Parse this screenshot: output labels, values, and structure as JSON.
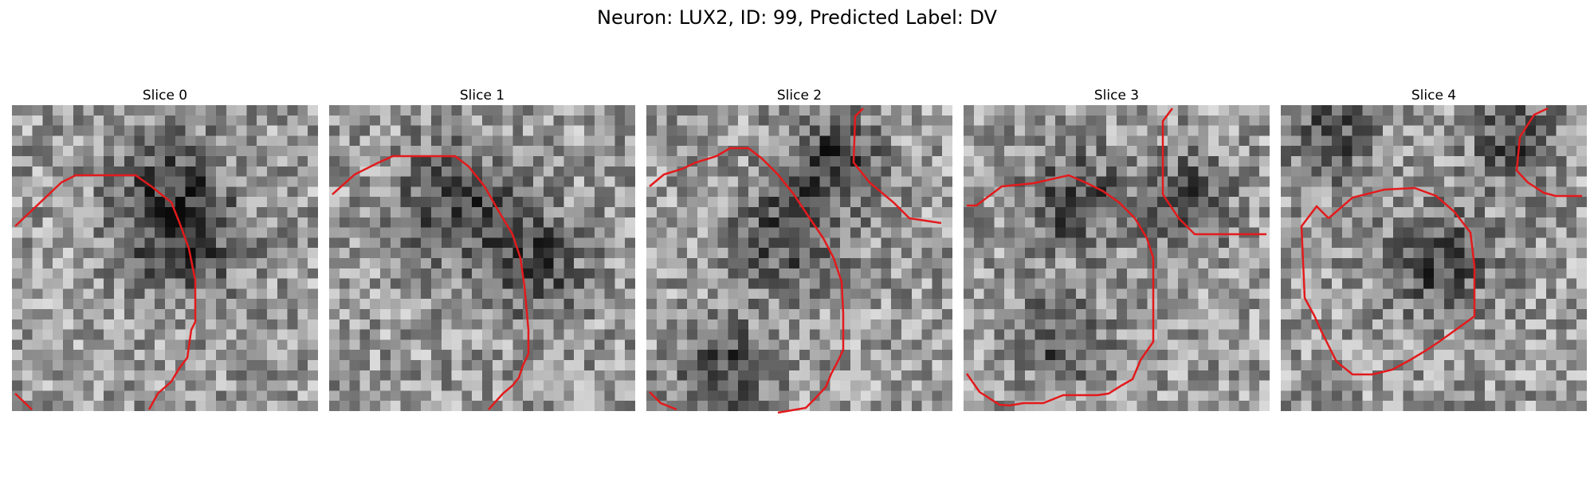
{
  "figure": {
    "title": "Neuron: LUX2, ID: 99, Predicted Label: DV"
  },
  "panels": [
    {
      "title": "Slice 0",
      "seed": 11
    },
    {
      "title": "Slice 1",
      "seed": 23
    },
    {
      "title": "Slice 2",
      "seed": 37
    },
    {
      "title": "Slice 3",
      "seed": 51
    },
    {
      "title": "Slice 4",
      "seed": 67
    }
  ],
  "colors": {
    "contour": "#e31a1c",
    "background": "#ffffff"
  },
  "image": {
    "grid": 30,
    "colormap": "gray"
  }
}
